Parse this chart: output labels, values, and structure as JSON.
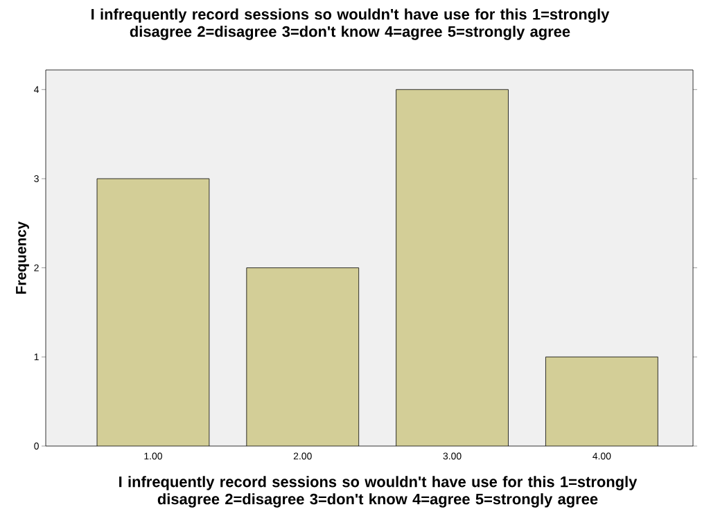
{
  "chart_data": {
    "type": "bar",
    "title": "I infrequently record sessions so wouldn't have use for this 1=strongly disagree 2=disagree 3=don't know 4=agree 5=strongly agree",
    "xlabel": "I infrequently record sessions so wouldn't have use for this 1=strongly disagree 2=disagree 3=don't know 4=agree 5=strongly agree",
    "ylabel": "Frequency",
    "categories": [
      "1.00",
      "2.00",
      "3.00",
      "4.00"
    ],
    "values": [
      3,
      2,
      4,
      1
    ],
    "color": "#d3ce97",
    "ylim": [
      0,
      4.22
    ],
    "yticks": [
      0,
      1,
      2,
      3,
      4
    ],
    "grid": false
  }
}
